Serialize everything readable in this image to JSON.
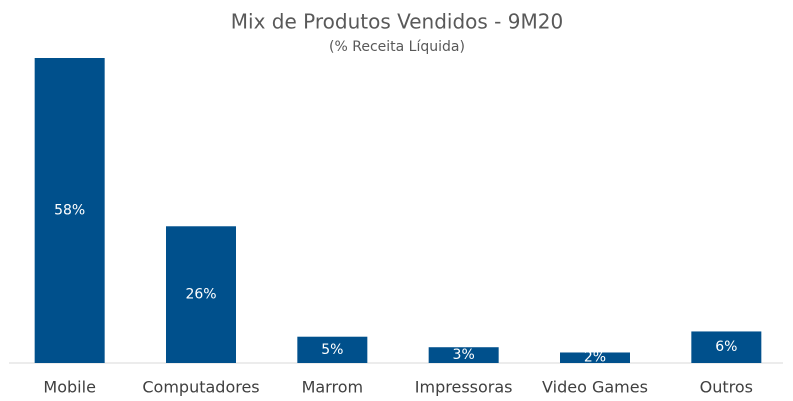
{
  "chart_data": {
    "type": "bar",
    "title": "Mix de Produtos Vendidos - 9M20",
    "subtitle": "(% Receita Líquida)",
    "categories": [
      "Mobile",
      "Computadores",
      "Marrom",
      "Impressoras",
      "Video Games",
      "Outros"
    ],
    "values": [
      58,
      26,
      5,
      3,
      2,
      6
    ],
    "value_labels": [
      "58%",
      "26%",
      "5%",
      "3%",
      "2%",
      "6%"
    ],
    "color": "#00508c"
  }
}
